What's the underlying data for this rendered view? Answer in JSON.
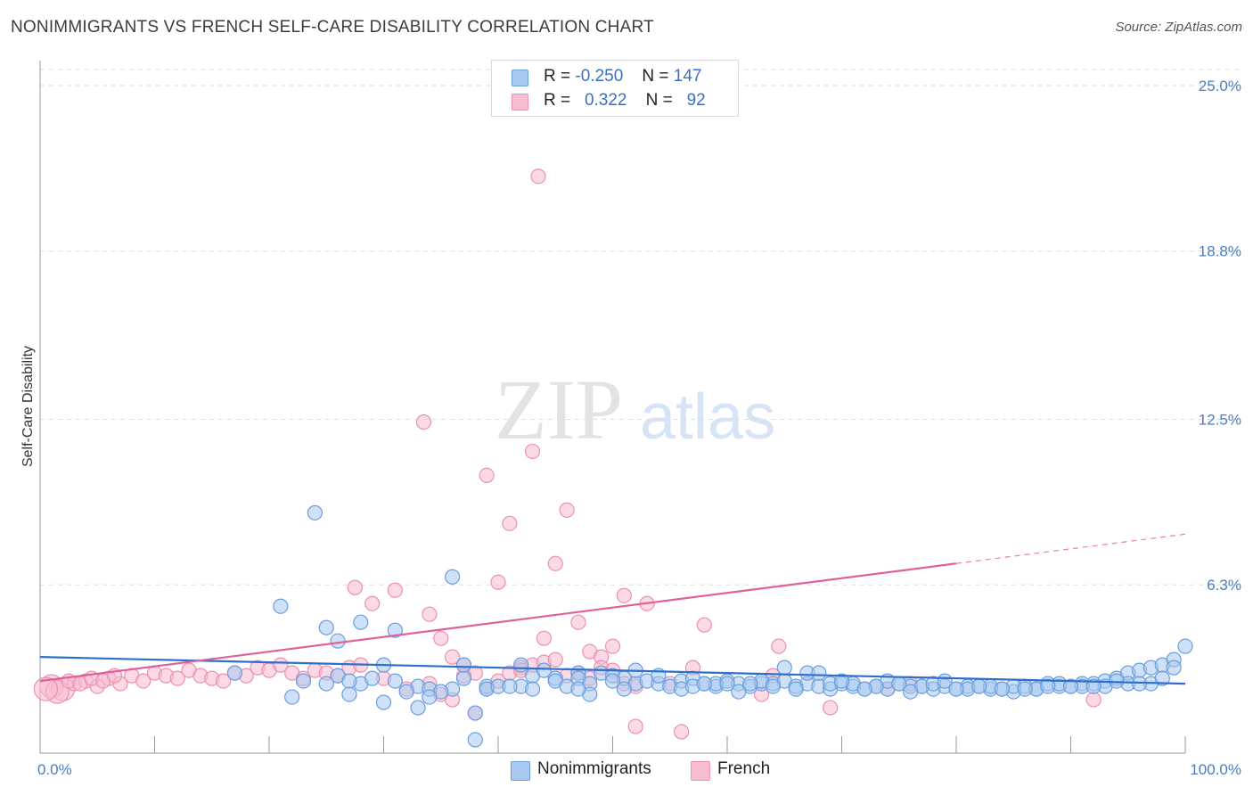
{
  "title": "NONIMMIGRANTS VS FRENCH SELF-CARE DISABILITY CORRELATION CHART",
  "source": "Source: ZipAtlas.com",
  "watermark": {
    "zip": "ZIP",
    "atlas": "atlas"
  },
  "legend_top": {
    "rows": [
      {
        "r_label": "R =",
        "r_value": "-0.250",
        "n_label": "N =",
        "n_value": "147"
      },
      {
        "r_label": "R =",
        "r_value": "0.322",
        "n_label": "N =",
        "n_value": "92"
      }
    ]
  },
  "legend_bottom": [
    {
      "label": "Nonimmigrants"
    },
    {
      "label": "French"
    }
  ],
  "colors": {
    "nonimmigrants_fill": "#a8c8f0",
    "nonimmigrants_stroke": "#6a9ede",
    "nonimmigrants_line": "#2e6fcc",
    "french_fill": "#f8bcd0",
    "french_stroke": "#ee8fb0",
    "french_line": "#e0609a",
    "tick_text": "#4a7cc7",
    "grid": "#dedede"
  },
  "chart_data": {
    "type": "scatter",
    "title": "NONIMMIGRANTS VS FRENCH SELF-CARE DISABILITY CORRELATION CHART",
    "xlabel": "",
    "ylabel": "Self-Care Disability",
    "xlim": [
      0,
      100
    ],
    "ylim": [
      0,
      25.6
    ],
    "x_tick_labels": [
      "0.0%",
      "100.0%"
    ],
    "y_ticks": [
      6.3,
      12.5,
      18.8,
      25.0
    ],
    "y_tick_labels": [
      "6.3%",
      "12.5%",
      "18.8%",
      "25.0%"
    ],
    "grid": "horizontal dashed",
    "legend_placement": "top-center and bottom",
    "series": [
      {
        "name": "Nonimmigrants",
        "r": -0.25,
        "n": 147,
        "trend": {
          "x": [
            0,
            100
          ],
          "y": [
            3.6,
            2.6
          ]
        },
        "x": [
          24,
          21,
          25,
          26,
          28,
          31,
          30,
          36,
          37,
          39,
          42,
          45,
          47,
          42,
          39,
          28,
          38,
          23,
          17,
          26,
          25,
          27,
          29,
          31,
          33,
          34,
          36,
          40,
          41,
          37,
          43,
          44,
          45,
          46,
          47,
          48,
          49,
          50,
          51,
          52,
          53,
          54,
          55,
          56,
          57,
          58,
          59,
          60,
          61,
          62,
          63,
          64,
          65,
          66,
          67,
          68,
          69,
          70,
          71,
          72,
          73,
          74,
          75,
          76,
          77,
          78,
          79,
          80,
          81,
          82,
          83,
          84,
          85,
          86,
          87,
          88,
          89,
          90,
          91,
          92,
          93,
          94,
          95,
          96,
          97,
          98,
          99,
          100,
          33,
          35,
          38,
          30,
          48,
          56,
          74,
          22,
          27,
          32,
          47,
          51,
          59,
          63,
          71,
          77,
          83,
          87,
          91,
          95,
          99,
          57,
          61,
          66,
          69,
          73,
          78,
          81,
          85,
          89,
          93,
          97,
          60,
          64,
          72,
          76,
          80,
          84,
          88,
          92,
          96,
          50,
          52,
          54,
          58,
          62,
          65,
          67,
          68,
          70,
          75,
          79,
          82,
          86,
          90,
          94,
          98,
          43,
          34
        ],
        "y": [
          9.0,
          5.5,
          4.7,
          4.2,
          4.9,
          4.6,
          3.3,
          6.6,
          2.8,
          2.5,
          3.3,
          2.8,
          3.0,
          2.5,
          2.4,
          2.6,
          1.5,
          2.7,
          3.0,
          2.9,
          2.6,
          2.7,
          2.8,
          2.7,
          2.5,
          2.4,
          2.4,
          2.5,
          2.5,
          3.3,
          2.9,
          3.1,
          2.7,
          2.5,
          2.8,
          2.6,
          3.0,
          2.9,
          2.8,
          2.6,
          2.7,
          2.6,
          2.5,
          2.7,
          2.8,
          2.6,
          2.5,
          2.7,
          2.6,
          2.5,
          2.6,
          2.6,
          2.7,
          2.5,
          2.6,
          2.5,
          2.4,
          2.6,
          2.5,
          2.4,
          2.5,
          2.4,
          2.6,
          2.5,
          2.5,
          2.4,
          2.5,
          2.4,
          2.5,
          2.5,
          2.4,
          2.4,
          2.3,
          2.5,
          2.4,
          2.6,
          2.5,
          2.5,
          2.6,
          2.6,
          2.7,
          2.8,
          3.0,
          3.1,
          3.2,
          3.3,
          3.5,
          4.0,
          1.7,
          2.3,
          0.5,
          1.9,
          2.2,
          2.4,
          2.7,
          2.1,
          2.2,
          2.3,
          2.4,
          2.4,
          2.6,
          2.7,
          2.6,
          2.5,
          2.5,
          2.4,
          2.5,
          2.6,
          3.2,
          2.5,
          2.3,
          2.4,
          2.6,
          2.5,
          2.6,
          2.4,
          2.5,
          2.6,
          2.5,
          2.6,
          2.6,
          2.5,
          2.4,
          2.3,
          2.4,
          2.4,
          2.5,
          2.5,
          2.6,
          2.7,
          3.1,
          2.9,
          2.6,
          2.6,
          3.2,
          3.0,
          3.0,
          2.7,
          2.6,
          2.7,
          2.5,
          2.4,
          2.5,
          2.7,
          2.8,
          2.4,
          2.1
        ]
      },
      {
        "name": "French",
        "r": 0.322,
        "n": 92,
        "trend_solid": {
          "x": [
            0,
            80
          ],
          "y": [
            2.7,
            7.1
          ]
        },
        "trend_dashed": {
          "x": [
            80,
            100
          ],
          "y": [
            7.1,
            8.2
          ]
        },
        "x": [
          43.5,
          33.5,
          43,
          46,
          41,
          39,
          45,
          40,
          27.5,
          29,
          31,
          34,
          35,
          36,
          37,
          38,
          42,
          44,
          47,
          48,
          49,
          50,
          51,
          52,
          53,
          55,
          56,
          57,
          58,
          63,
          64,
          64.5,
          69,
          74,
          76,
          92,
          1,
          2,
          3,
          4,
          5,
          6,
          7,
          8,
          9,
          10,
          11,
          12,
          13,
          14,
          15,
          16,
          17,
          18,
          19,
          20,
          21,
          22,
          23,
          24,
          25,
          26,
          27,
          28,
          30,
          32,
          34,
          35,
          36,
          37,
          38,
          39,
          40,
          41,
          42,
          43,
          44,
          45,
          46,
          47,
          48,
          49,
          50,
          51,
          52,
          1.5,
          2.5,
          0.5,
          3.5,
          4.5,
          5.5,
          6.5
        ],
        "y": [
          21.6,
          12.4,
          11.3,
          9.1,
          8.6,
          10.4,
          7.1,
          6.4,
          6.2,
          5.6,
          6.1,
          5.2,
          4.3,
          3.6,
          3.3,
          3.0,
          3.2,
          4.3,
          4.9,
          3.8,
          3.6,
          4.0,
          5.9,
          1.0,
          5.6,
          2.6,
          0.8,
          3.2,
          4.8,
          2.2,
          2.9,
          4.0,
          1.7,
          2.4,
          2.6,
          2.0,
          2.5,
          2.4,
          2.6,
          2.7,
          2.5,
          2.8,
          2.6,
          2.9,
          2.7,
          3.0,
          2.9,
          2.8,
          3.1,
          2.9,
          2.8,
          2.7,
          3.0,
          2.9,
          3.2,
          3.1,
          3.3,
          3.0,
          2.8,
          3.1,
          3.0,
          2.9,
          3.2,
          3.3,
          2.8,
          2.4,
          2.6,
          2.2,
          2.0,
          2.9,
          1.5,
          2.4,
          2.7,
          3.0,
          3.1,
          3.3,
          3.4,
          3.5,
          2.9,
          3.0,
          2.8,
          3.2,
          3.1,
          2.6,
          2.5,
          2.3,
          2.7,
          2.4,
          2.6,
          2.8,
          2.7,
          2.9
        ]
      }
    ]
  }
}
